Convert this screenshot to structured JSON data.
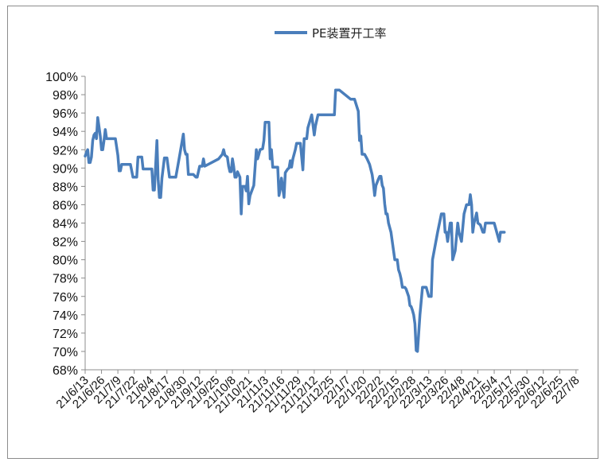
{
  "chart_data": {
    "type": "line",
    "title": "",
    "xlabel": "",
    "ylabel": "",
    "ylim": [
      0.68,
      1.0
    ],
    "y_ticks": [
      "68%",
      "70%",
      "72%",
      "74%",
      "76%",
      "78%",
      "80%",
      "82%",
      "84%",
      "86%",
      "88%",
      "90%",
      "92%",
      "94%",
      "96%",
      "98%",
      "100%"
    ],
    "x_ticks": [
      "21/6/13",
      "21/6/26",
      "21/7/9",
      "21/7/22",
      "21/8/4",
      "21/8/17",
      "21/8/30",
      "21/9/12",
      "21/9/25",
      "21/10/8",
      "21/10/21",
      "21/11/3",
      "21/11/16",
      "21/11/29",
      "21/12/12",
      "21/12/25",
      "22/1/7",
      "22/1/20",
      "22/2/2",
      "22/2/15",
      "22/2/28",
      "22/3/13",
      "22/3/26",
      "22/4/8",
      "22/4/21",
      "22/5/4",
      "22/5/17",
      "22/5/30",
      "22/6/12",
      "22/6/25",
      "22/7/8"
    ],
    "x_range": [
      "2021-06-13",
      "2022-07-10"
    ],
    "grid": false,
    "legend_position": "top-center",
    "series": [
      {
        "name": "PE装置开工率",
        "color": "#4a7ebb",
        "points": [
          [
            "2021-06-13",
            0.913
          ],
          [
            "2021-06-14",
            0.917
          ],
          [
            "2021-06-15",
            0.92
          ],
          [
            "2021-06-16",
            0.906
          ],
          [
            "2021-06-17",
            0.906
          ],
          [
            "2021-06-18",
            0.912
          ],
          [
            "2021-06-19",
            0.93
          ],
          [
            "2021-06-20",
            0.936
          ],
          [
            "2021-06-21",
            0.938
          ],
          [
            "2021-06-22",
            0.932
          ],
          [
            "2021-06-23",
            0.955
          ],
          [
            "2021-06-24",
            0.945
          ],
          [
            "2021-06-25",
            0.935
          ],
          [
            "2021-06-26",
            0.92
          ],
          [
            "2021-06-27",
            0.92
          ],
          [
            "2021-06-28",
            0.93
          ],
          [
            "2021-06-29",
            0.942
          ],
          [
            "2021-06-30",
            0.932
          ],
          [
            "2021-07-01",
            0.932
          ],
          [
            "2021-07-07",
            0.932
          ],
          [
            "2021-07-09",
            0.914
          ],
          [
            "2021-07-10",
            0.897
          ],
          [
            "2021-07-11",
            0.897
          ],
          [
            "2021-07-12",
            0.904
          ],
          [
            "2021-07-19",
            0.904
          ],
          [
            "2021-07-21",
            0.89
          ],
          [
            "2021-07-22",
            0.89
          ],
          [
            "2021-07-24",
            0.89
          ],
          [
            "2021-07-25",
            0.912
          ],
          [
            "2021-07-28",
            0.912
          ],
          [
            "2021-07-29",
            0.899
          ],
          [
            "2021-08-05",
            0.899
          ],
          [
            "2021-08-06",
            0.876
          ],
          [
            "2021-08-07",
            0.876
          ],
          [
            "2021-08-09",
            0.93
          ],
          [
            "2021-08-10",
            0.888
          ],
          [
            "2021-08-11",
            0.868
          ],
          [
            "2021-08-12",
            0.868
          ],
          [
            "2021-08-13",
            0.889
          ],
          [
            "2021-08-15",
            0.911
          ],
          [
            "2021-08-17",
            0.911
          ],
          [
            "2021-08-19",
            0.89
          ],
          [
            "2021-08-24",
            0.89
          ],
          [
            "2021-08-26",
            0.905
          ],
          [
            "2021-08-29",
            0.929
          ],
          [
            "2021-08-30",
            0.937
          ],
          [
            "2021-08-31",
            0.92
          ],
          [
            "2021-09-01",
            0.915
          ],
          [
            "2021-09-02",
            0.915
          ],
          [
            "2021-09-03",
            0.893
          ],
          [
            "2021-09-07",
            0.893
          ],
          [
            "2021-09-09",
            0.89
          ],
          [
            "2021-09-10",
            0.89
          ],
          [
            "2021-09-12",
            0.902
          ],
          [
            "2021-09-14",
            0.902
          ],
          [
            "2021-09-15",
            0.91
          ],
          [
            "2021-09-16",
            0.902
          ],
          [
            "2021-09-27",
            0.91
          ],
          [
            "2021-09-30",
            0.915
          ],
          [
            "2021-10-01",
            0.92
          ],
          [
            "2021-10-02",
            0.914
          ],
          [
            "2021-10-04",
            0.912
          ],
          [
            "2021-10-05",
            0.902
          ],
          [
            "2021-10-06",
            0.896
          ],
          [
            "2021-10-07",
            0.896
          ],
          [
            "2021-10-08",
            0.91
          ],
          [
            "2021-10-09",
            0.902
          ],
          [
            "2021-10-10",
            0.89
          ],
          [
            "2021-10-11",
            0.89
          ],
          [
            "2021-10-12",
            0.896
          ],
          [
            "2021-10-14",
            0.89
          ],
          [
            "2021-10-15",
            0.85
          ],
          [
            "2021-10-16",
            0.88
          ],
          [
            "2021-10-18",
            0.88
          ],
          [
            "2021-10-19",
            0.875
          ],
          [
            "2021-10-20",
            0.891
          ],
          [
            "2021-10-21",
            0.861
          ],
          [
            "2021-10-22",
            0.87
          ],
          [
            "2021-10-25",
            0.881
          ],
          [
            "2021-10-27",
            0.92
          ],
          [
            "2021-10-28",
            0.91
          ],
          [
            "2021-10-29",
            0.915
          ],
          [
            "2021-10-30",
            0.92
          ],
          [
            "2021-11-01",
            0.921
          ],
          [
            "2021-11-02",
            0.93
          ],
          [
            "2021-11-03",
            0.95
          ],
          [
            "2021-11-06",
            0.95
          ],
          [
            "2021-11-07",
            0.91
          ],
          [
            "2021-11-08",
            0.92
          ],
          [
            "2021-11-09",
            0.901
          ],
          [
            "2021-11-13",
            0.901
          ],
          [
            "2021-11-14",
            0.87
          ],
          [
            "2021-11-15",
            0.877
          ],
          [
            "2021-11-16",
            0.889
          ],
          [
            "2021-11-18",
            0.868
          ],
          [
            "2021-11-19",
            0.895
          ],
          [
            "2021-11-21",
            0.899
          ],
          [
            "2021-11-22",
            0.9
          ],
          [
            "2021-11-23",
            0.908
          ],
          [
            "2021-11-24",
            0.901
          ],
          [
            "2021-11-25",
            0.91
          ],
          [
            "2021-11-27",
            0.92
          ],
          [
            "2021-11-28",
            0.927
          ],
          [
            "2021-12-01",
            0.927
          ],
          [
            "2021-12-03",
            0.898
          ],
          [
            "2021-12-04",
            0.932
          ],
          [
            "2021-12-06",
            0.932
          ],
          [
            "2021-12-07",
            0.944
          ],
          [
            "2021-12-10",
            0.958
          ],
          [
            "2021-12-11",
            0.947
          ],
          [
            "2021-12-12",
            0.936
          ],
          [
            "2021-12-13",
            0.946
          ],
          [
            "2021-12-15",
            0.958
          ],
          [
            "2021-12-28",
            0.958
          ],
          [
            "2021-12-29",
            0.985
          ],
          [
            "2022-01-01",
            0.985
          ],
          [
            "2022-01-10",
            0.975
          ],
          [
            "2022-01-13",
            0.975
          ],
          [
            "2022-01-16",
            0.962
          ],
          [
            "2022-01-17",
            0.93
          ],
          [
            "2022-01-18",
            0.935
          ],
          [
            "2022-01-19",
            0.915
          ],
          [
            "2022-01-21",
            0.915
          ],
          [
            "2022-01-23",
            0.91
          ],
          [
            "2022-01-25",
            0.904
          ],
          [
            "2022-01-27",
            0.893
          ],
          [
            "2022-01-28",
            0.883
          ],
          [
            "2022-01-29",
            0.87
          ],
          [
            "2022-01-30",
            0.881
          ],
          [
            "2022-02-01",
            0.888
          ],
          [
            "2022-02-02",
            0.891
          ],
          [
            "2022-02-03",
            0.891
          ],
          [
            "2022-02-04",
            0.881
          ],
          [
            "2022-02-05",
            0.878
          ],
          [
            "2022-02-06",
            0.861
          ],
          [
            "2022-02-07",
            0.85
          ],
          [
            "2022-02-08",
            0.85
          ],
          [
            "2022-02-09",
            0.84
          ],
          [
            "2022-02-11",
            0.83
          ],
          [
            "2022-02-12",
            0.82
          ],
          [
            "2022-02-13",
            0.81
          ],
          [
            "2022-02-14",
            0.8
          ],
          [
            "2022-02-16",
            0.8
          ],
          [
            "2022-02-17",
            0.789
          ],
          [
            "2022-02-18",
            0.785
          ],
          [
            "2022-02-19",
            0.779
          ],
          [
            "2022-02-20",
            0.77
          ],
          [
            "2022-02-22",
            0.77
          ],
          [
            "2022-02-23",
            0.768
          ],
          [
            "2022-02-25",
            0.76
          ],
          [
            "2022-02-26",
            0.75
          ],
          [
            "2022-02-27",
            0.749
          ],
          [
            "2022-02-28",
            0.745
          ],
          [
            "2022-03-01",
            0.74
          ],
          [
            "2022-03-02",
            0.73
          ],
          [
            "2022-03-03",
            0.701
          ],
          [
            "2022-03-04",
            0.7
          ],
          [
            "2022-03-06",
            0.74
          ],
          [
            "2022-03-08",
            0.77
          ],
          [
            "2022-03-11",
            0.77
          ],
          [
            "2022-03-13",
            0.76
          ],
          [
            "2022-03-15",
            0.76
          ],
          [
            "2022-03-16",
            0.8
          ],
          [
            "2022-03-20",
            0.83
          ],
          [
            "2022-03-23",
            0.85
          ],
          [
            "2022-03-25",
            0.85
          ],
          [
            "2022-03-26",
            0.83
          ],
          [
            "2022-03-27",
            0.83
          ],
          [
            "2022-03-28",
            0.82
          ],
          [
            "2022-03-30",
            0.84
          ],
          [
            "2022-03-31",
            0.84
          ],
          [
            "2022-04-01",
            0.8
          ],
          [
            "2022-04-03",
            0.81
          ],
          [
            "2022-04-05",
            0.84
          ],
          [
            "2022-04-06",
            0.83
          ],
          [
            "2022-04-08",
            0.82
          ],
          [
            "2022-04-10",
            0.85
          ],
          [
            "2022-04-12",
            0.86
          ],
          [
            "2022-04-14",
            0.86
          ],
          [
            "2022-04-15",
            0.871
          ],
          [
            "2022-04-16",
            0.86
          ],
          [
            "2022-04-17",
            0.83
          ],
          [
            "2022-04-18",
            0.84
          ],
          [
            "2022-04-20",
            0.851
          ],
          [
            "2022-04-21",
            0.84
          ],
          [
            "2022-04-23",
            0.838
          ],
          [
            "2022-04-25",
            0.83
          ],
          [
            "2022-04-26",
            0.83
          ],
          [
            "2022-04-27",
            0.84
          ],
          [
            "2022-05-04",
            0.84
          ],
          [
            "2022-05-06",
            0.83
          ],
          [
            "2022-05-08",
            0.82
          ],
          [
            "2022-05-09",
            0.83
          ],
          [
            "2022-05-12",
            0.83
          ]
        ]
      }
    ]
  }
}
